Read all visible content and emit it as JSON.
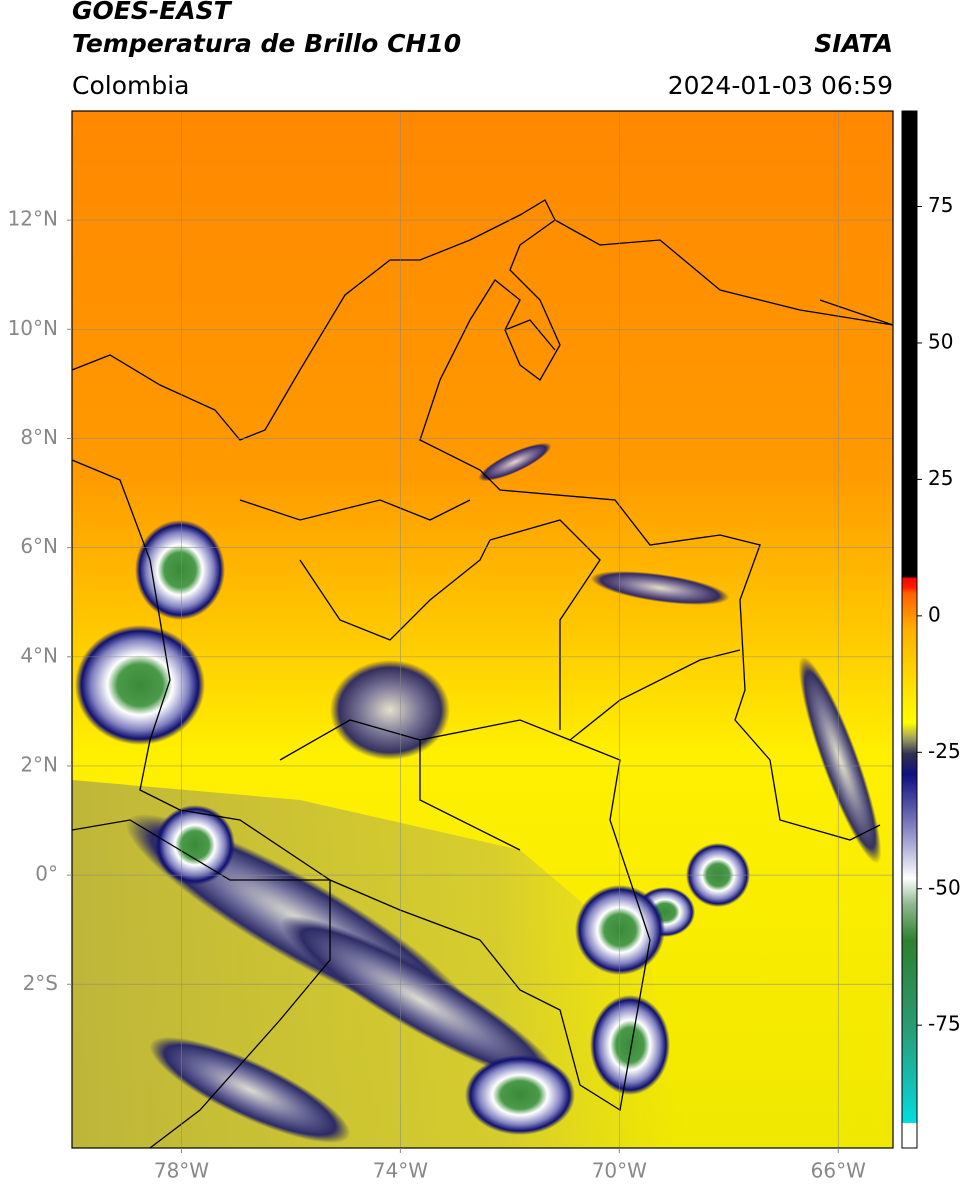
{
  "header": {
    "title": "GOES-EAST",
    "subtitle": "Temperatura de Brillo CH10",
    "source": "SIATA",
    "region": "Colombia",
    "datetime": "2024-01-03 06:59"
  },
  "map": {
    "xlim": [
      -80,
      -65
    ],
    "ylim": [
      -5,
      14
    ],
    "xticks": [
      {
        "value": -78,
        "label": "78°W"
      },
      {
        "value": -74,
        "label": "74°W"
      },
      {
        "value": -70,
        "label": "70°W"
      },
      {
        "value": -66,
        "label": "66°W"
      }
    ],
    "yticks": [
      {
        "value": 12,
        "label": "12°N"
      },
      {
        "value": 10,
        "label": "10°N"
      },
      {
        "value": 8,
        "label": "8°N"
      },
      {
        "value": 6,
        "label": "6°N"
      },
      {
        "value": 4,
        "label": "4°N"
      },
      {
        "value": 2,
        "label": "2°N"
      },
      {
        "value": 0,
        "label": "0°"
      },
      {
        "value": -2,
        "label": "2°S"
      }
    ],
    "grid": true,
    "colorbar": {
      "range": [
        -97.5,
        92.5
      ],
      "ticks": [
        75,
        50,
        25,
        0,
        -25,
        -50,
        -75
      ]
    }
  }
}
